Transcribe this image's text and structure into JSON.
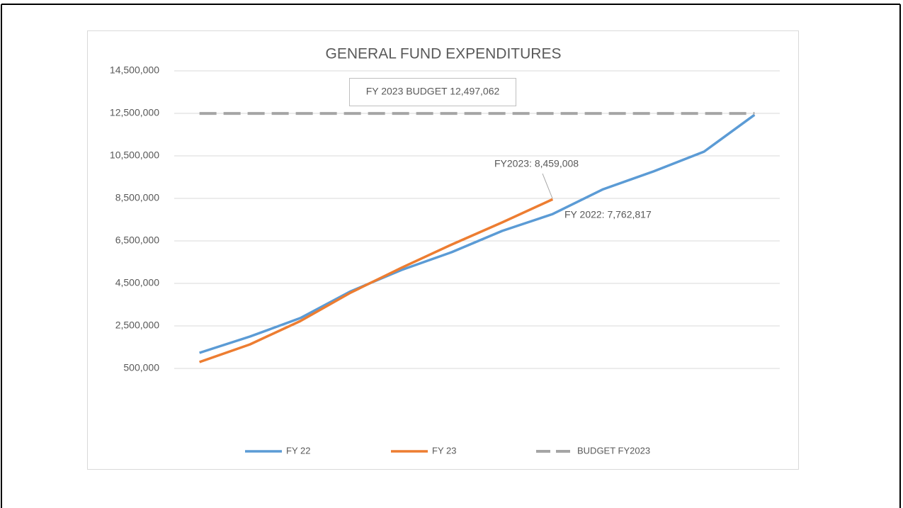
{
  "chart_data": {
    "type": "line",
    "title": "GENERAL FUND EXPENDITURES",
    "categories": [
      null,
      null,
      null,
      null,
      null,
      null,
      null,
      null,
      null,
      null,
      null,
      null
    ],
    "series": [
      {
        "name": "FY 22",
        "color": "#5b9bd5",
        "values": [
          1233000,
          2000000,
          2870000,
          4130000,
          5130000,
          5970000,
          6970000,
          7762817,
          8930000,
          9770000,
          10700000,
          12430000
        ]
      },
      {
        "name": "FY 23",
        "color": "#ed7d31",
        "values": [
          800000,
          1630000,
          2730000,
          4070000,
          5230000,
          6330000,
          7370000,
          8459008,
          null,
          null,
          null,
          null
        ]
      },
      {
        "name": "BUDGET FY2023",
        "color": "#a5a5a5",
        "dashed": true,
        "values": [
          12497062,
          12497062,
          12497062,
          12497062,
          12497062,
          12497062,
          12497062,
          12497062,
          12497062,
          12497062,
          12497062,
          12497062
        ]
      }
    ],
    "annotations": [
      "FY 2023 BUDGET 12,497,062",
      "FY2023: 8,459,008",
      "FY 2022: 7,762,817"
    ],
    "ylim": [
      500000,
      14500000
    ],
    "yticks": [
      {
        "value": 500000,
        "label": "500,000"
      },
      {
        "value": 2500000,
        "label": "2,500,000"
      },
      {
        "value": 4500000,
        "label": "4,500,000"
      },
      {
        "value": 6500000,
        "label": "6,500,000"
      },
      {
        "value": 8500000,
        "label": "8,500,000"
      },
      {
        "value": 10500000,
        "label": "10,500,000"
      },
      {
        "value": 12500000,
        "label": "12,500,000"
      },
      {
        "value": 14500000,
        "label": "14,500,000"
      }
    ],
    "grid": true,
    "legend": "bottom"
  }
}
